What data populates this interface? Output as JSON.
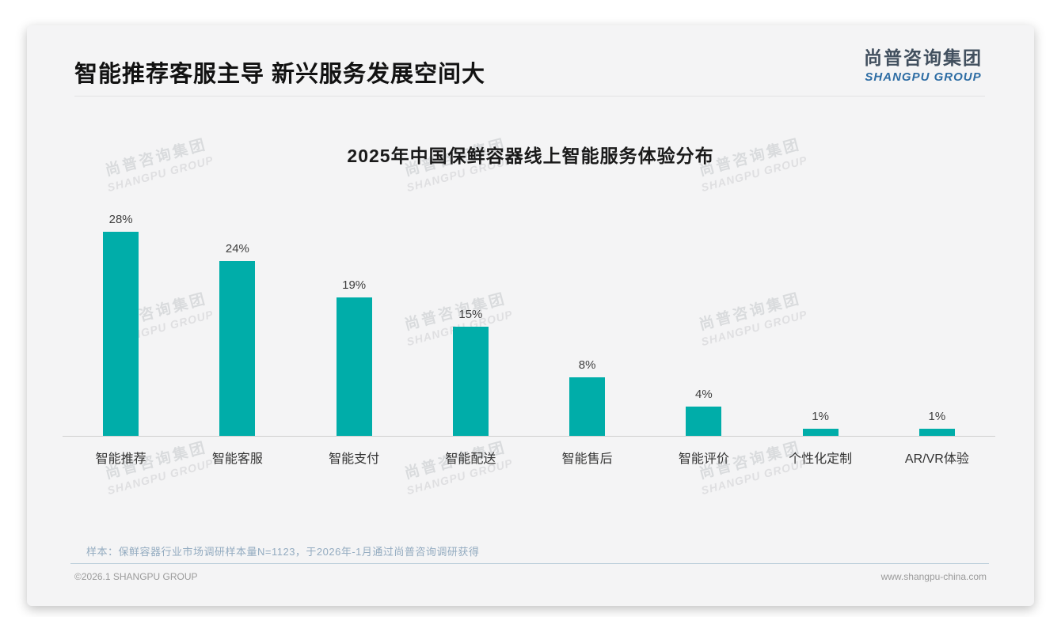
{
  "header": {
    "title": "智能推荐客服主导 新兴服务发展空间大"
  },
  "logo": {
    "cn": "尚普咨询集团",
    "en": "SHANGPU GROUP"
  },
  "watermark": {
    "line1": "尚普咨询集团",
    "line2": "SHANGPU GROUP"
  },
  "chart_data": {
    "type": "bar",
    "title": "2025年中国保鲜容器线上智能服务体验分布",
    "categories": [
      "智能推荐",
      "智能客服",
      "智能支付",
      "智能配送",
      "智能售后",
      "智能评价",
      "个性化定制",
      "AR/VR体验"
    ],
    "values": [
      28,
      24,
      19,
      15,
      8,
      4,
      1,
      1
    ],
    "value_labels": [
      "28%",
      "24%",
      "19%",
      "15%",
      "8%",
      "4%",
      "1%",
      "1%"
    ],
    "unit": "%",
    "ylim": [
      0,
      30
    ],
    "bar_color": "#00ADA9",
    "grid": false,
    "legend": false,
    "xlabel": "",
    "ylabel": ""
  },
  "footnote": {
    "sample_note": "样本：保鲜容器行业市场调研样本量N=1123，于2026年-1月通过尚普咨询调研获得"
  },
  "footer": {
    "copyright": "©2026.1 SHANGPU GROUP",
    "website": "www.shangpu-china.com"
  }
}
